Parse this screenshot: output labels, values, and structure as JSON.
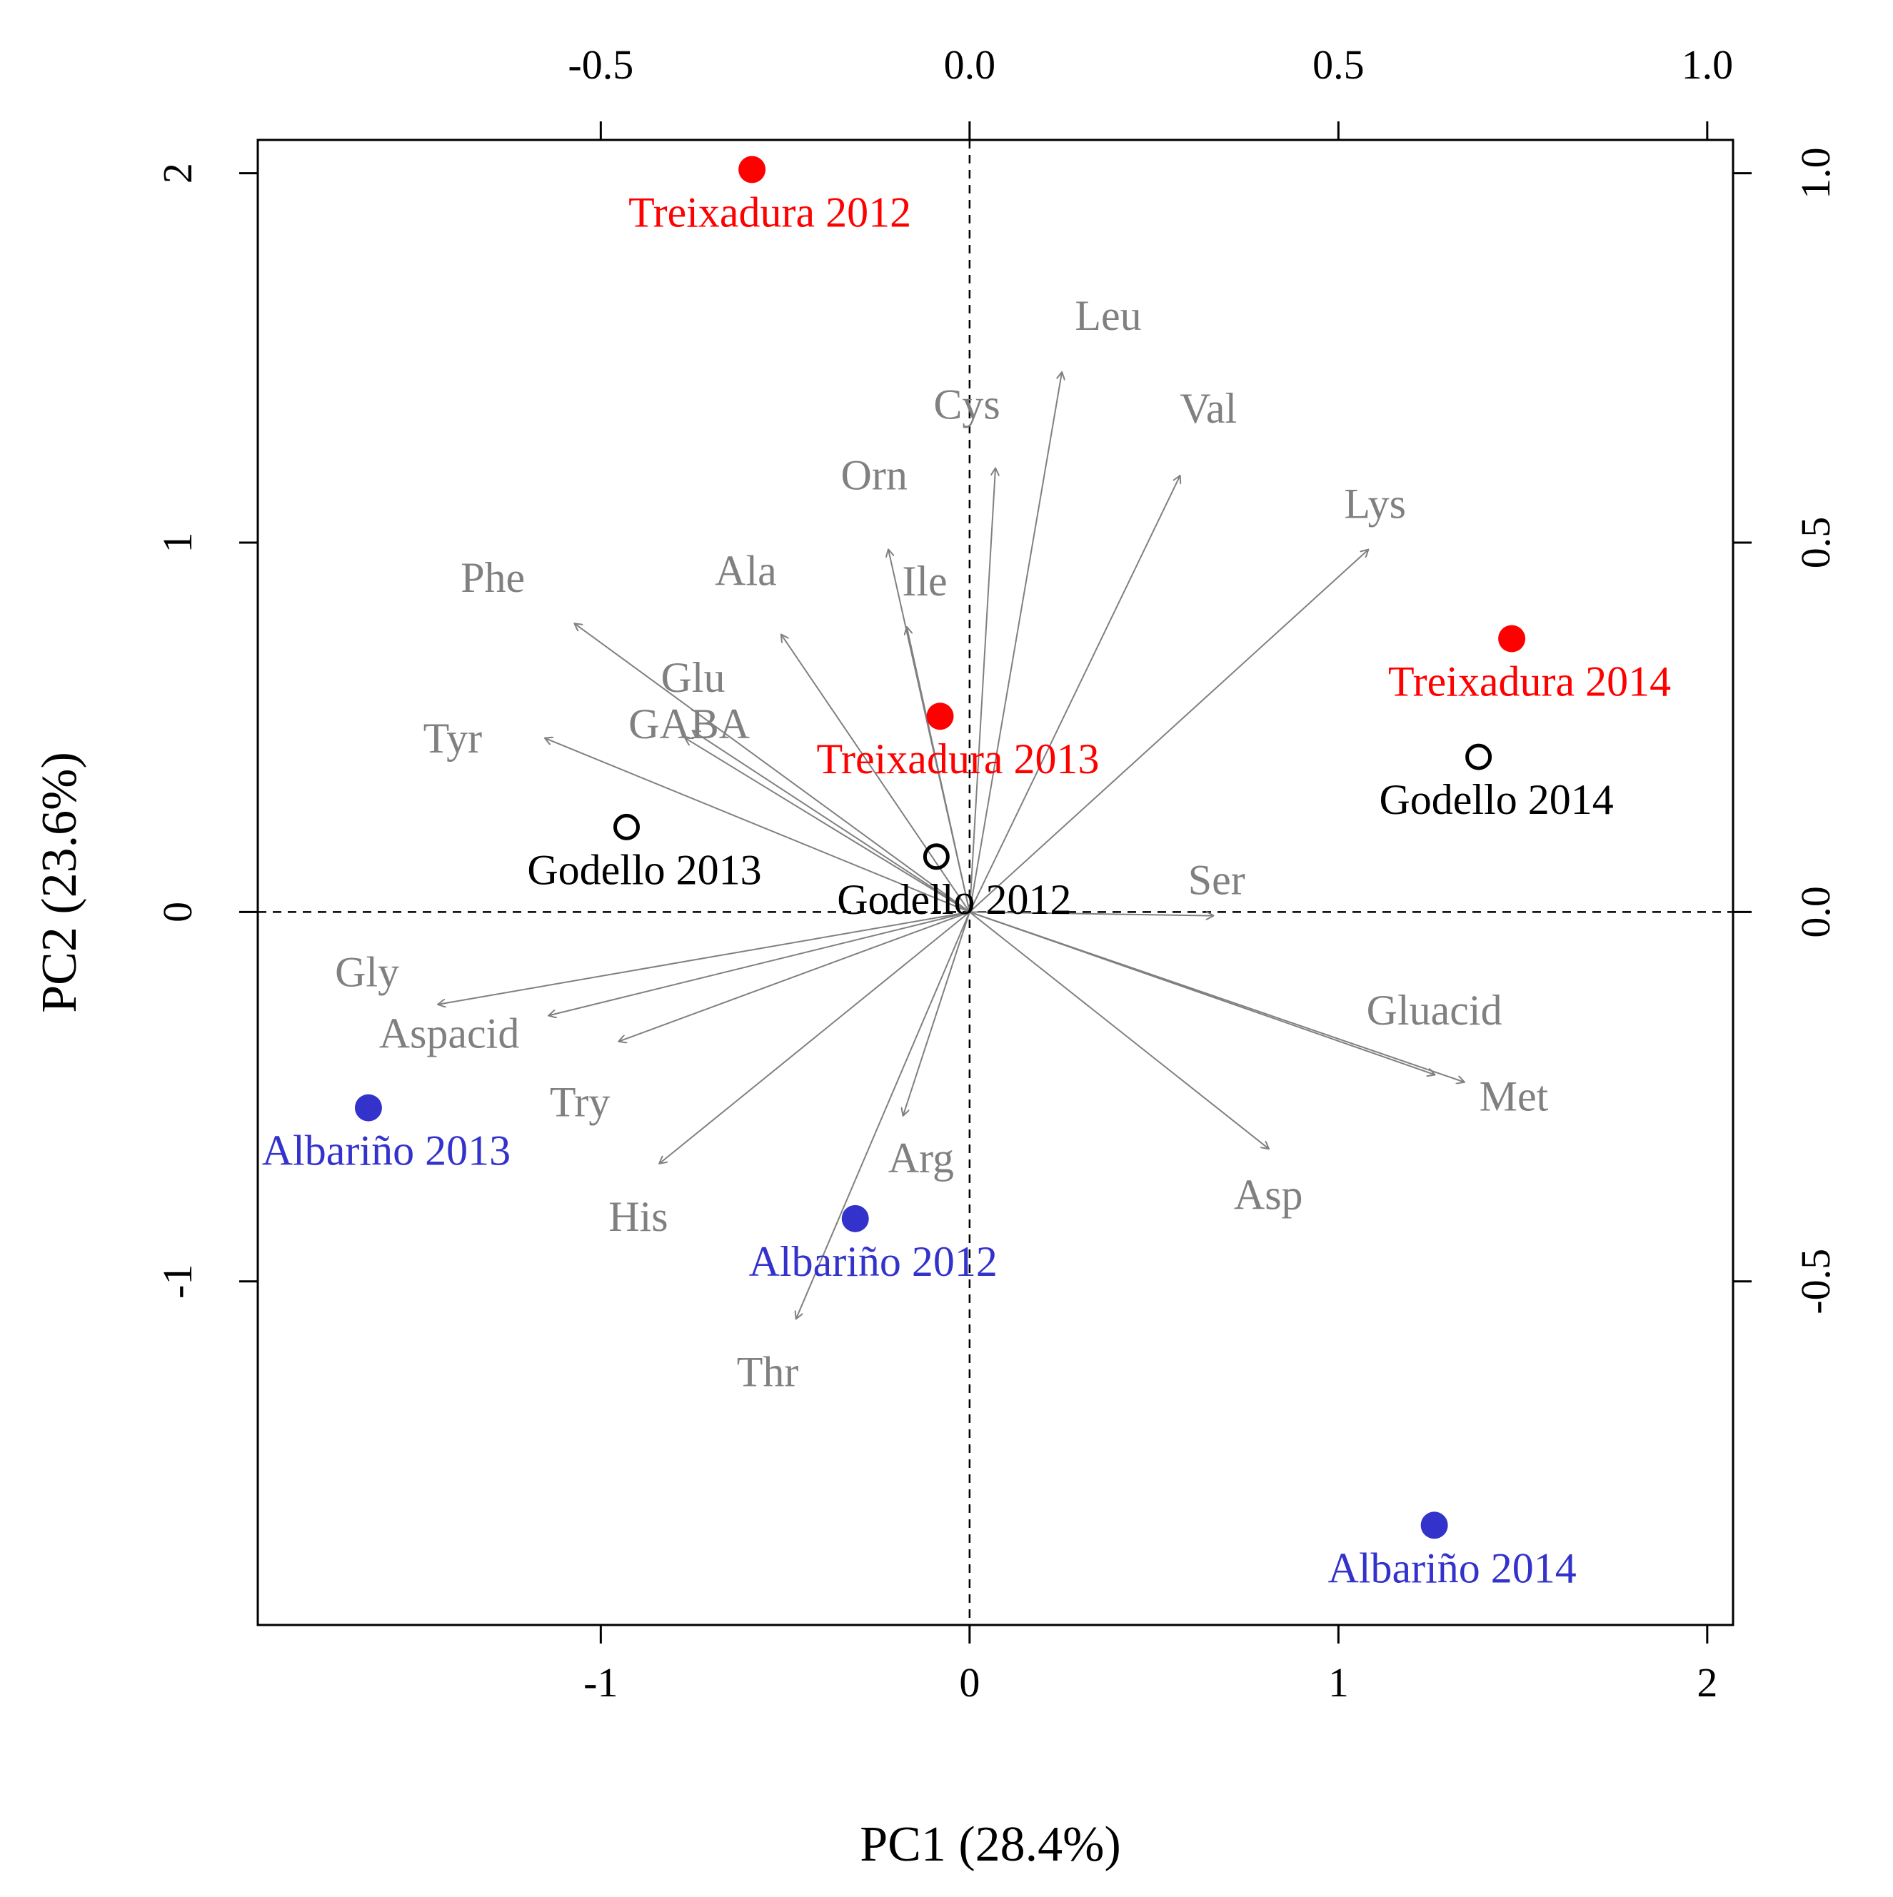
{
  "chart_data": {
    "type": "scatter",
    "subtype": "pca-biplot",
    "title": "",
    "xlabel": "PC1 (28.4%)",
    "ylabel": "PC2 (23.6%)",
    "xlim": [
      -1.93,
      2.07
    ],
    "ylim": [
      -1.93,
      2.09
    ],
    "x_ticks": [
      -1,
      0,
      1,
      2
    ],
    "y_ticks": [
      -1,
      0,
      1,
      2
    ],
    "x_tick_labels": [
      "-1",
      "0",
      "1",
      "2"
    ],
    "y_tick_labels": [
      "-1",
      "0",
      "1",
      "2"
    ],
    "loadings_xlim": [
      -0.965,
      1.035
    ],
    "loadings_ylim": [
      -0.965,
      1.045
    ],
    "top_ticks": [
      -0.5,
      0.0,
      0.5,
      1.0
    ],
    "top_tick_labels": [
      "-0.5",
      "0.0",
      "0.5",
      "1.0"
    ],
    "right_ticks": [
      -0.5,
      0.0,
      0.5,
      1.0
    ],
    "right_tick_labels": [
      "-0.5",
      "0.0",
      "0.5",
      "1.0"
    ],
    "reference_lines": "dashed at x=0 and y=0",
    "samples": [
      {
        "label": "Treixadura 2012",
        "x": -0.59,
        "y": 2.01,
        "color": "#ff0000",
        "marker": "filled"
      },
      {
        "label": "Treixadura 2013",
        "x": -0.08,
        "y": 0.53,
        "color": "#ff0000",
        "marker": "filled"
      },
      {
        "label": "Treixadura 2014",
        "x": 1.47,
        "y": 0.74,
        "color": "#ff0000",
        "marker": "filled"
      },
      {
        "label": "Godello 2012",
        "x": -0.09,
        "y": 0.15,
        "color": "#000000",
        "marker": "open"
      },
      {
        "label": "Godello 2013",
        "x": -0.93,
        "y": 0.23,
        "color": "#000000",
        "marker": "open"
      },
      {
        "label": "Godello 2014",
        "x": 1.38,
        "y": 0.42,
        "color": "#000000",
        "marker": "open"
      },
      {
        "label": "Albariño 2012",
        "x": -0.31,
        "y": -0.83,
        "color": "#3333cc",
        "marker": "filled"
      },
      {
        "label": "Albariño 2013",
        "x": -1.63,
        "y": -0.53,
        "color": "#3333cc",
        "marker": "filled"
      },
      {
        "label": "Albariño 2014",
        "x": 1.26,
        "y": -1.66,
        "color": "#3333cc",
        "marker": "filled"
      }
    ],
    "loadings": [
      {
        "name": "Leu",
        "x": 0.125,
        "y": 0.73
      },
      {
        "name": "Cys",
        "x": 0.035,
        "y": 0.6
      },
      {
        "name": "Val",
        "x": 0.285,
        "y": 0.59
      },
      {
        "name": "Lys",
        "x": 0.54,
        "y": 0.49
      },
      {
        "name": "Orn",
        "x": -0.11,
        "y": 0.49
      },
      {
        "name": "Ile",
        "x": -0.085,
        "y": 0.385
      },
      {
        "name": "Ala",
        "x": -0.255,
        "y": 0.375
      },
      {
        "name": "Phe",
        "x": -0.535,
        "y": 0.39
      },
      {
        "name": "Glu",
        "x": -0.375,
        "y": 0.245
      },
      {
        "name": "GABA",
        "x": -0.385,
        "y": 0.235
      },
      {
        "name": "Tyr",
        "x": -0.575,
        "y": 0.235
      },
      {
        "name": "Ser",
        "x": 0.33,
        "y": -0.005
      },
      {
        "name": "Gly",
        "x": -0.72,
        "y": -0.125
      },
      {
        "name": "Aspacid",
        "x": -0.57,
        "y": -0.14
      },
      {
        "name": "Try",
        "x": -0.475,
        "y": -0.175
      },
      {
        "name": "Gluacid",
        "x": 0.63,
        "y": -0.22
      },
      {
        "name": "Met",
        "x": 0.67,
        "y": -0.23
      },
      {
        "name": "Arg",
        "x": -0.09,
        "y": -0.275
      },
      {
        "name": "Asp",
        "x": 0.405,
        "y": -0.32
      },
      {
        "name": "His",
        "x": -0.42,
        "y": -0.34
      },
      {
        "name": "Thr",
        "x": -0.235,
        "y": -0.55
      }
    ],
    "colors": {
      "treixadura": "#ff0000",
      "godello": "#000000",
      "albarino": "#3333cc",
      "arrows": "#808080",
      "axes": "#000000"
    }
  }
}
